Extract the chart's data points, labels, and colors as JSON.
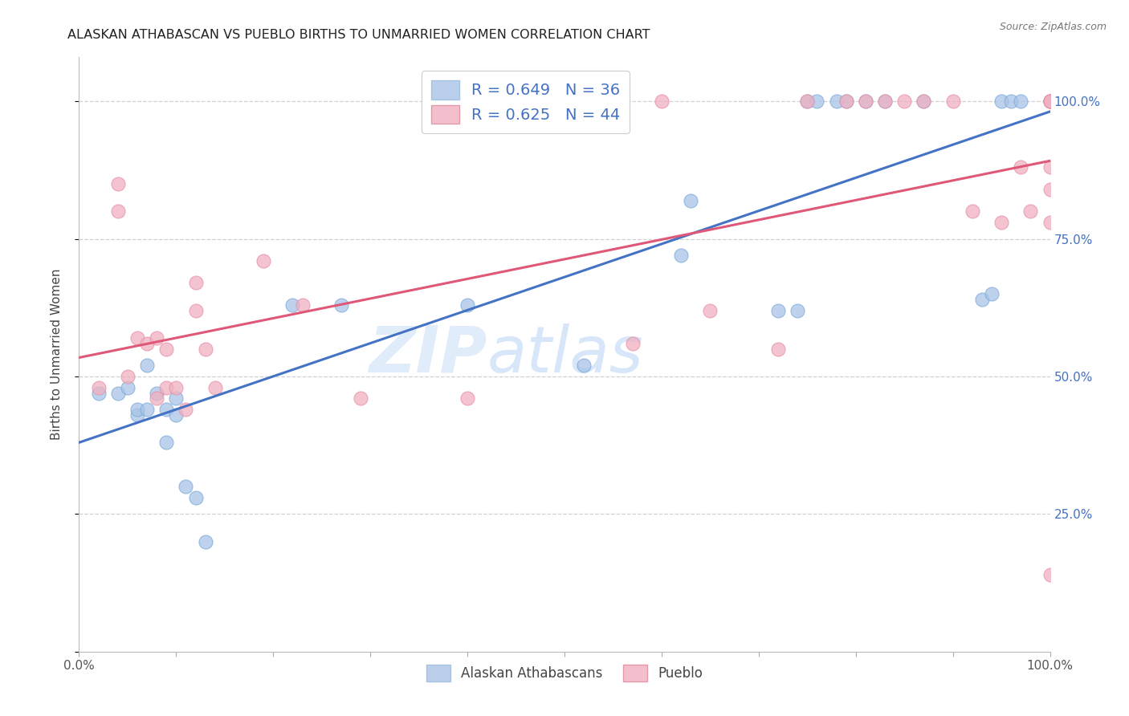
{
  "title": "ALASKAN ATHABASCAN VS PUEBLO BIRTHS TO UNMARRIED WOMEN CORRELATION CHART",
  "source": "Source: ZipAtlas.com",
  "ylabel": "Births to Unmarried Women",
  "blue_color": "#a8c4e8",
  "pink_color": "#f0b0c0",
  "blue_line_color": "#4472c4",
  "pink_line_color": "#e05878",
  "legend_blue_label": "R = 0.649   N = 36",
  "legend_pink_label": "R = 0.625   N = 44",
  "legend_label_blue": "Alaskan Athabascans",
  "legend_label_pink": "Pueblo",
  "watermark_zip": "ZIP",
  "watermark_atlas": "atlas",
  "blue_scatter_x": [
    0.02,
    0.04,
    0.05,
    0.06,
    0.06,
    0.07,
    0.07,
    0.08,
    0.09,
    0.09,
    0.1,
    0.1,
    0.11,
    0.12,
    0.13,
    0.22,
    0.27,
    0.4,
    0.52,
    0.62,
    0.63,
    0.72,
    0.74,
    0.75,
    0.76,
    0.78,
    0.79,
    0.81,
    0.83,
    0.87,
    0.93,
    0.94,
    0.95,
    0.96,
    0.97,
    1.0
  ],
  "blue_scatter_y": [
    0.47,
    0.47,
    0.48,
    0.43,
    0.44,
    0.44,
    0.52,
    0.47,
    0.38,
    0.44,
    0.43,
    0.46,
    0.3,
    0.28,
    0.2,
    0.63,
    0.63,
    0.63,
    0.52,
    0.72,
    0.82,
    0.62,
    0.62,
    1.0,
    1.0,
    1.0,
    1.0,
    1.0,
    1.0,
    1.0,
    0.64,
    0.65,
    1.0,
    1.0,
    1.0,
    1.0
  ],
  "pink_scatter_x": [
    0.02,
    0.04,
    0.04,
    0.05,
    0.06,
    0.07,
    0.08,
    0.08,
    0.09,
    0.09,
    0.1,
    0.11,
    0.12,
    0.12,
    0.13,
    0.14,
    0.19,
    0.23,
    0.29,
    0.4,
    0.57,
    0.6,
    0.65,
    0.72,
    0.75,
    0.79,
    0.81,
    0.83,
    0.85,
    0.87,
    0.9,
    0.92,
    0.95,
    0.97,
    0.98,
    1.0,
    1.0,
    1.0,
    1.0,
    1.0,
    1.0,
    1.0,
    1.0,
    1.0
  ],
  "pink_scatter_y": [
    0.48,
    0.8,
    0.85,
    0.5,
    0.57,
    0.56,
    0.46,
    0.57,
    0.48,
    0.55,
    0.48,
    0.44,
    0.62,
    0.67,
    0.55,
    0.48,
    0.71,
    0.63,
    0.46,
    0.46,
    0.56,
    1.0,
    0.62,
    0.55,
    1.0,
    1.0,
    1.0,
    1.0,
    1.0,
    1.0,
    1.0,
    0.8,
    0.78,
    0.88,
    0.8,
    0.78,
    0.84,
    0.88,
    1.0,
    1.0,
    1.0,
    1.0,
    1.0,
    0.14
  ],
  "background_color": "#ffffff",
  "grid_color": "#d0d0d0",
  "right_tick_color": "#4472c4",
  "watermark_color": "#ddeeff"
}
